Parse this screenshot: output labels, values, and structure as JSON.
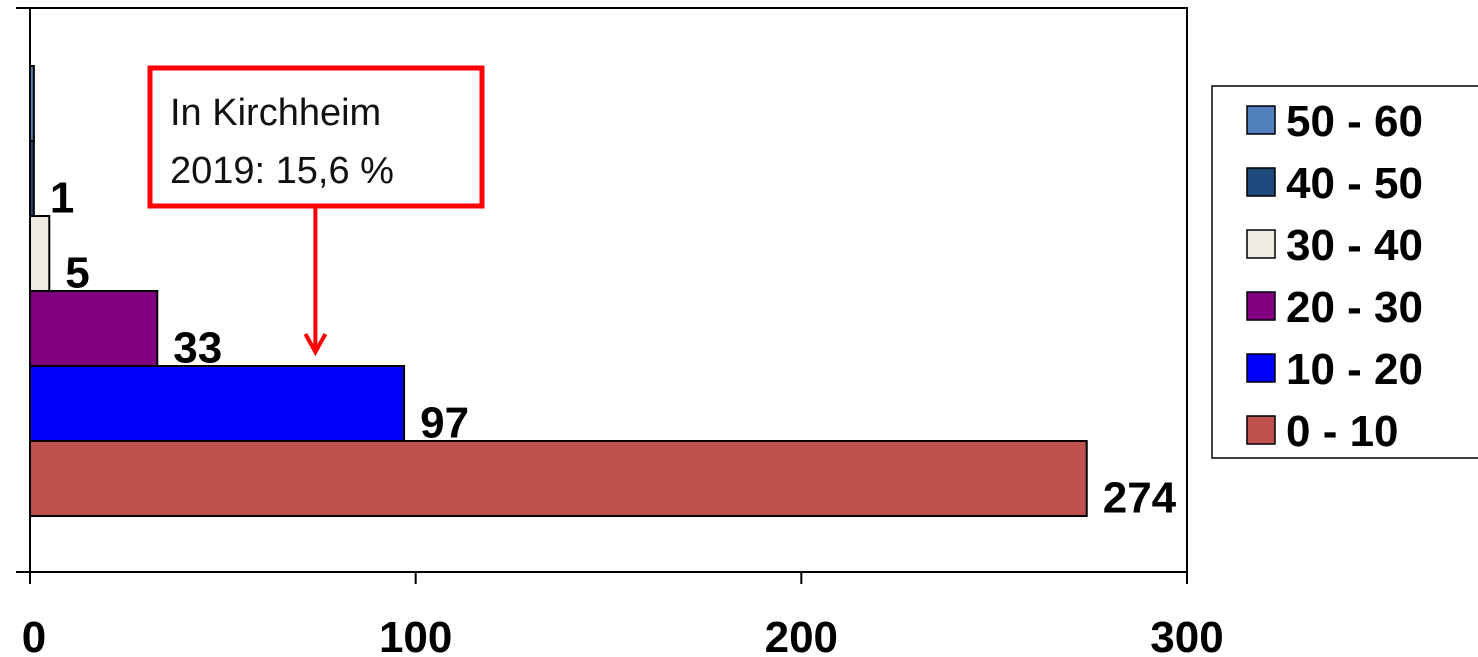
{
  "chart_data": {
    "type": "bar",
    "orientation": "horizontal",
    "categories": [
      "0 - 10",
      "10 - 20",
      "20 - 30",
      "30 - 40",
      "40 - 50",
      "50 - 60"
    ],
    "values": [
      274,
      97,
      33,
      5,
      1,
      1
    ],
    "data_labels": [
      "274",
      "97",
      "33",
      "5",
      "1",
      ""
    ],
    "colors": [
      "#c0504d",
      "#0000ff",
      "#800080",
      "#eeece1",
      "#1f497d",
      "#4f81bd"
    ],
    "xlim": [
      0,
      300
    ],
    "xticks": [
      0,
      100,
      200,
      300
    ],
    "xtick_labels": [
      "0",
      "100",
      "200",
      "300"
    ],
    "title": "",
    "xlabel": "",
    "ylabel": "",
    "grid": false,
    "legend": {
      "placement": "right",
      "entries": [
        "50 - 60",
        "40 - 50",
        "30 - 40",
        "20 - 30",
        "10 - 20",
        "0 - 10"
      ]
    },
    "annotation": {
      "lines": [
        "In Kirchheim",
        "2019: 15,6 %"
      ],
      "box_color": "#ff0000",
      "points_to_value": 74
    }
  }
}
